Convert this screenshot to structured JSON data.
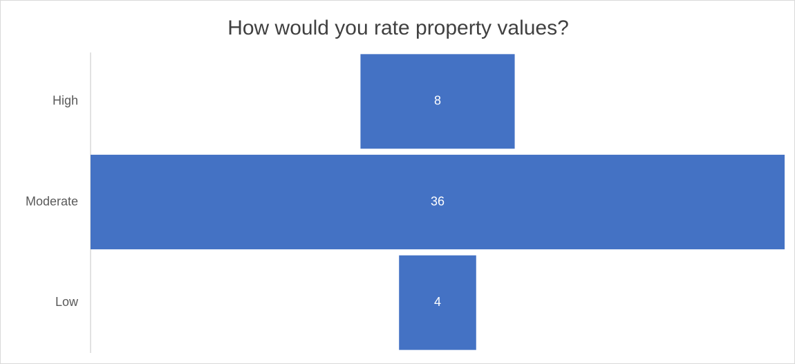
{
  "chart_data": {
    "type": "funnel",
    "title": "How would you rate property values?",
    "categories": [
      "High",
      "Moderate",
      "Low"
    ],
    "values": [
      8,
      36,
      4
    ],
    "color": "#4472c4"
  }
}
